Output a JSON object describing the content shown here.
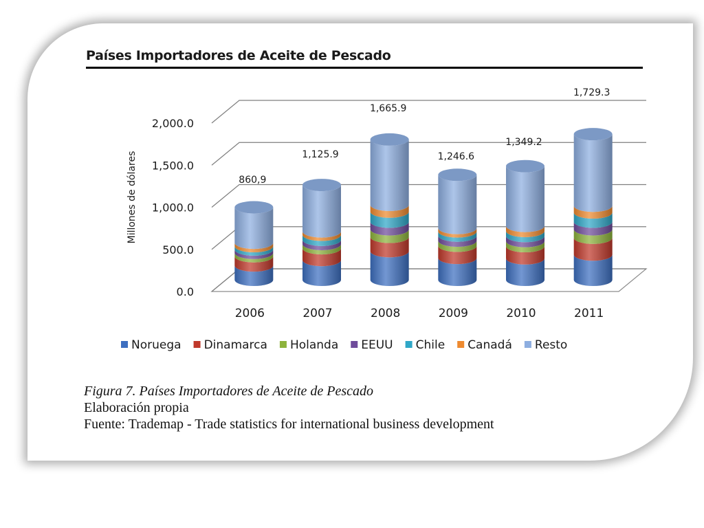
{
  "chart_data": {
    "type": "bar",
    "stacked": true,
    "title": "Países Importadores de Aceite de Pescado",
    "ylabel": "Millones de dólares",
    "xlabel": "",
    "ylim": [
      0,
      2000
    ],
    "y_ticks": [
      "0.0",
      "500.0",
      "1,000.0",
      "1,500.0",
      "2,000.0"
    ],
    "categories": [
      "2006",
      "2007",
      "2008",
      "2009",
      "2010",
      "2011"
    ],
    "totals": [
      860.9,
      1125.9,
      1665.9,
      1246.6,
      1349.2,
      1729.3
    ],
    "total_labels": [
      "860,9",
      "1,125.9",
      "1,665.9",
      "1,246.6",
      "1,349.2",
      "1,729.3"
    ],
    "legend_position": "bottom",
    "grid": true,
    "series": [
      {
        "name": "Noruega",
        "color": "#3d6fc0",
        "values": [
          170,
          235,
          340,
          260,
          255,
          300
        ]
      },
      {
        "name": "Dinamarca",
        "color": "#c0392b",
        "values": [
          110,
          140,
          170,
          145,
          145,
          200
        ]
      },
      {
        "name": "Holanda",
        "color": "#8db33c",
        "values": [
          40,
          50,
          90,
          60,
          60,
          100
        ]
      },
      {
        "name": "EEUU",
        "color": "#6f4c9b",
        "values": [
          40,
          50,
          90,
          60,
          60,
          90
        ]
      },
      {
        "name": "Chile",
        "color": "#2fa7c7",
        "values": [
          40,
          60,
          120,
          50,
          60,
          110
        ]
      },
      {
        "name": "Canadá",
        "color": "#ee8a2f",
        "values": [
          40,
          40,
          80,
          40,
          60,
          80
        ]
      },
      {
        "name": "Resto",
        "color": "#8daee0",
        "values": [
          420.9,
          550.9,
          775.9,
          631.6,
          709.2,
          849.3
        ]
      }
    ]
  },
  "caption": {
    "figure": "Figura 7. Países Importadores de Aceite de Pescado",
    "line2": "Elaboración propia",
    "line3": "Fuente: Trademap - Trade statistics for international business development"
  },
  "colors": {
    "axis_text": "#1a1a1a",
    "gridline": "#7f7f7f"
  }
}
